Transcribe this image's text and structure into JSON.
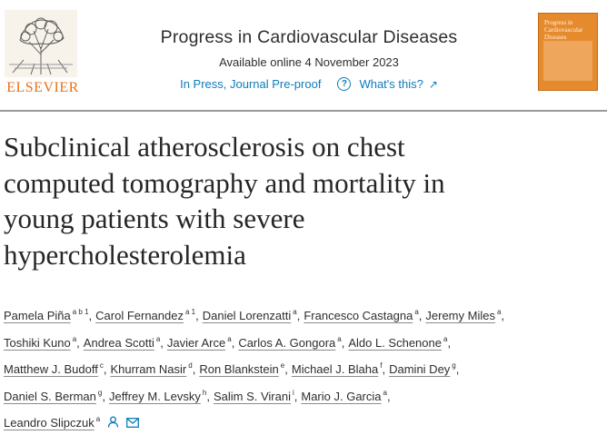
{
  "publisher": {
    "name": "ELSEVIER",
    "brand_color": "#e9711c"
  },
  "journal": {
    "title": "Progress in Cardiovascular Diseases",
    "available": "Available online 4 November 2023",
    "status": "In Press, Journal Pre-proof",
    "help_link": "What's this?",
    "link_color": "#0c7dbb",
    "cover_icon": "journal-cover",
    "cover_text": "Progress in Cardiovascular Diseases"
  },
  "article": {
    "title_lines": [
      "Subclinical atherosclerosis on chest",
      "computed tomography and mortality in",
      "young patients with severe",
      "hypercholesterolemia"
    ]
  },
  "authors": [
    [
      {
        "name": "Pamela Piña",
        "sup": "a b 1"
      },
      {
        "name": "Carol Fernandez",
        "sup": "a 1"
      },
      {
        "name": "Daniel Lorenzatti",
        "sup": "a"
      },
      {
        "name": "Francesco Castagna",
        "sup": "a"
      },
      {
        "name": "Jeremy Miles",
        "sup": "a"
      }
    ],
    [
      {
        "name": "Toshiki Kuno",
        "sup": "a"
      },
      {
        "name": "Andrea Scotti",
        "sup": "a"
      },
      {
        "name": "Javier Arce",
        "sup": "a"
      },
      {
        "name": "Carlos A. Gongora",
        "sup": "a"
      },
      {
        "name": "Aldo L. Schenone",
        "sup": "a"
      }
    ],
    [
      {
        "name": "Matthew J. Budoff",
        "sup": "c"
      },
      {
        "name": "Khurram Nasir",
        "sup": "d"
      },
      {
        "name": "Ron Blankstein",
        "sup": "e"
      },
      {
        "name": "Michael J. Blaha",
        "sup": "f"
      },
      {
        "name": "Damini Dey",
        "sup": "g"
      }
    ],
    [
      {
        "name": "Daniel S. Berman",
        "sup": "g"
      },
      {
        "name": "Jeffrey M. Levsky",
        "sup": "h"
      },
      {
        "name": "Salim S. Virani",
        "sup": "i"
      },
      {
        "name": "Mario J. Garcia",
        "sup": "a"
      }
    ],
    [
      {
        "name": "Leandro Slipczuk",
        "sup": "a"
      }
    ]
  ],
  "icons": {
    "help": "help-circle-icon",
    "external": "external-arrow-icon",
    "person": "person-icon",
    "mail": "mail-icon"
  }
}
